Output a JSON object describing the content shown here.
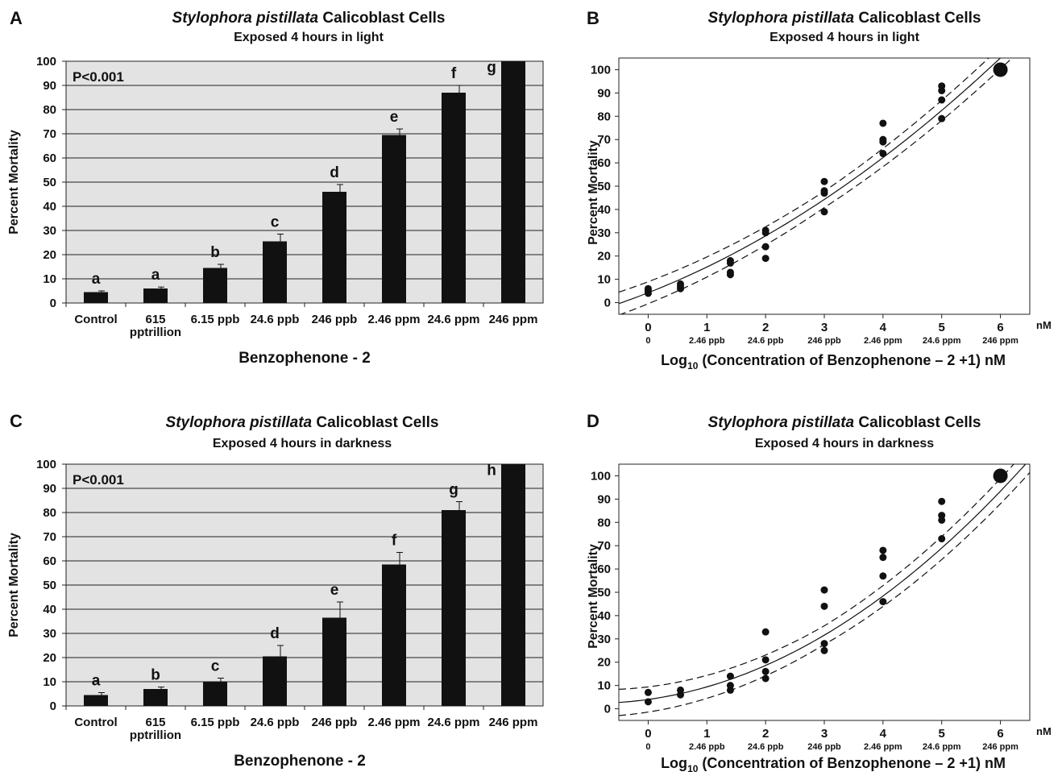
{
  "chart_data": [
    {
      "panel": "A",
      "type": "bar",
      "title_italic": "Stylophora pistillata",
      "title_rest": " Calicoblast Cells",
      "subtitle": "Exposed 4 hours in light",
      "xlabel": "Benzophenone - 2",
      "ylabel": "Percent Mortality",
      "annotation": "P<0.001",
      "ylim": [
        0,
        100
      ],
      "yticks": [
        0,
        10,
        20,
        30,
        40,
        50,
        60,
        70,
        80,
        90,
        100
      ],
      "grid": true,
      "categories": [
        [
          "Control"
        ],
        [
          "615",
          "pptrillion"
        ],
        [
          "6.15 ppb"
        ],
        [
          "24.6 ppb"
        ],
        [
          "246 ppb"
        ],
        [
          "2.46 ppm"
        ],
        [
          "24.6 ppm"
        ],
        [
          "246 ppm"
        ]
      ],
      "values": [
        4.5,
        6,
        14.5,
        25.5,
        46,
        69.5,
        87,
        100
      ],
      "errors": [
        0.5,
        0.6,
        1.5,
        3,
        3,
        2.5,
        3,
        0
      ],
      "letters": [
        "a",
        "a",
        "b",
        "c",
        "d",
        "e",
        "f",
        "g"
      ]
    },
    {
      "panel": "B",
      "type": "scatter",
      "title_italic": "Stylophora pistillata",
      "title_rest": " Calicoblast Cells",
      "subtitle": "Exposed 4 hours in light",
      "xlabel": "Log10 (Concentration of Benzophenone – 2 +1) nM",
      "ylabel": "Percent Mortality",
      "xunit": "nM",
      "xlim": [
        -0.5,
        6.5
      ],
      "ylim": [
        -5,
        105
      ],
      "yticks": [
        0,
        10,
        20,
        30,
        40,
        50,
        60,
        70,
        80,
        90,
        100
      ],
      "xticks": [
        0,
        1,
        2,
        3,
        4,
        5,
        6
      ],
      "xsublabels": [
        "0",
        "2.46 ppb",
        "24.6 ppb",
        "246 ppb",
        "2.46 ppm",
        "24.6 ppm",
        "246 ppm"
      ],
      "points": [
        [
          0,
          4
        ],
        [
          0,
          5
        ],
        [
          0,
          6
        ],
        [
          0.55,
          6
        ],
        [
          0.55,
          7
        ],
        [
          0.55,
          8
        ],
        [
          1.4,
          12
        ],
        [
          1.4,
          13
        ],
        [
          1.4,
          17
        ],
        [
          1.4,
          18
        ],
        [
          2,
          19
        ],
        [
          2,
          24
        ],
        [
          2,
          30
        ],
        [
          2,
          31
        ],
        [
          3,
          39
        ],
        [
          3,
          47
        ],
        [
          3,
          48
        ],
        [
          3,
          52
        ],
        [
          4,
          64
        ],
        [
          4,
          69
        ],
        [
          4,
          70
        ],
        [
          4,
          77
        ],
        [
          5,
          79
        ],
        [
          5,
          87
        ],
        [
          5,
          91
        ],
        [
          5,
          93
        ],
        [
          6,
          100
        ]
      ],
      "fit": {
        "type": "quadratic",
        "coef": [
          4.25,
          9.9,
          1.15
        ],
        "ci": 3.5
      }
    },
    {
      "panel": "C",
      "type": "bar",
      "title_italic": "Stylophora pistillata",
      "title_rest": " Calicoblast Cells",
      "subtitle": "Exposed 4 hours in darkness",
      "xlabel": "Benzophenone - 2",
      "ylabel": "Percent Mortality",
      "annotation": "P<0.001",
      "ylim": [
        0,
        100
      ],
      "yticks": [
        0,
        10,
        20,
        30,
        40,
        50,
        60,
        70,
        80,
        90,
        100
      ],
      "grid": true,
      "categories": [
        [
          "Control"
        ],
        [
          "615",
          "pptrillion"
        ],
        [
          "6.15 ppb"
        ],
        [
          "24.6 ppb"
        ],
        [
          "246 ppb"
        ],
        [
          "2.46 ppm"
        ],
        [
          "24.6 ppm"
        ],
        [
          "246 ppm"
        ]
      ],
      "values": [
        4.5,
        7,
        10,
        20.5,
        36.5,
        58.5,
        81,
        100
      ],
      "errors": [
        1,
        0.8,
        1.5,
        4.5,
        6.5,
        5,
        3.5,
        0
      ],
      "letters": [
        "a",
        "b",
        "c",
        "d",
        "e",
        "f",
        "g",
        "h"
      ]
    },
    {
      "panel": "D",
      "type": "scatter",
      "title_italic": "Stylophora pistillata",
      "title_rest": " Calicoblast Cells",
      "subtitle": "Exposed 4 hours in darkness",
      "xlabel": "Log10 (Concentration of Benzophenone – 2 +1) nM",
      "ylabel": "Percent Mortality",
      "xunit": "nM",
      "xlim": [
        -0.5,
        6.5
      ],
      "ylim": [
        -5,
        105
      ],
      "yticks": [
        0,
        10,
        20,
        30,
        40,
        50,
        60,
        70,
        80,
        90,
        100
      ],
      "xticks": [
        0,
        1,
        2,
        3,
        4,
        5,
        6
      ],
      "xsublabels": [
        "0",
        "2.46 ppb",
        "24.6 ppb",
        "246 ppb",
        "2.46 ppm",
        "24.6 ppm",
        "246 ppm"
      ],
      "points": [
        [
          0,
          3
        ],
        [
          0,
          7
        ],
        [
          0.55,
          6
        ],
        [
          0.55,
          8
        ],
        [
          1.4,
          8
        ],
        [
          1.4,
          10
        ],
        [
          1.4,
          14
        ],
        [
          2,
          13
        ],
        [
          2,
          16
        ],
        [
          2,
          21
        ],
        [
          2,
          33
        ],
        [
          3,
          25
        ],
        [
          3,
          28
        ],
        [
          3,
          44
        ],
        [
          3,
          51
        ],
        [
          4,
          46
        ],
        [
          4,
          57
        ],
        [
          4,
          65
        ],
        [
          4,
          68
        ],
        [
          5,
          73
        ],
        [
          5,
          81
        ],
        [
          5,
          83
        ],
        [
          5,
          89
        ],
        [
          6,
          100
        ]
      ],
      "fit": {
        "type": "quadratic",
        "coef": [
          4,
          3.5,
          1.9
        ],
        "ci": 4
      }
    }
  ],
  "panel_labels": [
    "A",
    "B",
    "C",
    "D"
  ],
  "xlabel_log_prefix": "Log",
  "xlabel_log_sub": "10",
  "xlabel_log_rest": " (Concentration of Benzophenone – 2 +1) nM"
}
